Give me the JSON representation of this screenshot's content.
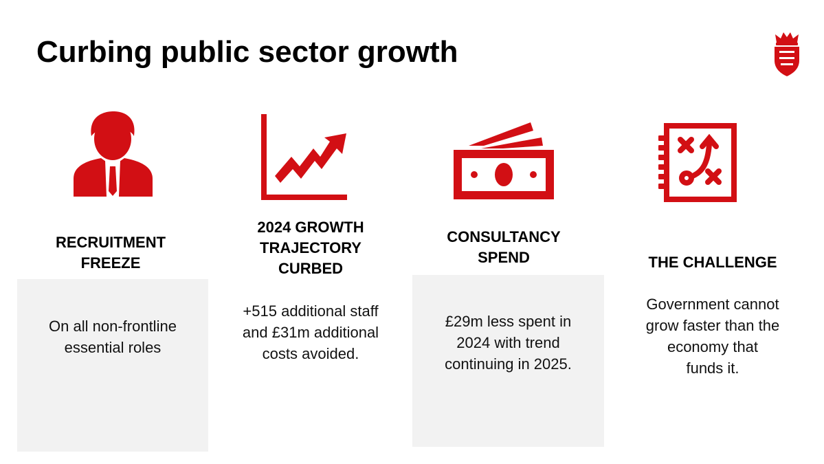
{
  "slide": {
    "title": "Curbing public sector growth",
    "accent_color": "#d20f14",
    "panel_color": "#f2f2f2",
    "columns": [
      {
        "icon": "businessman-icon",
        "heading_lines": [
          "RECRUITMENT",
          "FREEZE"
        ],
        "text_lines": [
          "On all non-frontline",
          "essential roles"
        ]
      },
      {
        "icon": "growth-chart-icon",
        "heading_lines": [
          "2024 GROWTH",
          "TRAJECTORY",
          "CURBED"
        ],
        "text_lines": [
          "+515 additional staff",
          "and £31m additional",
          "costs avoided."
        ]
      },
      {
        "icon": "banknotes-icon",
        "heading_lines": [
          "CONSULTANCY",
          "SPEND"
        ],
        "text_lines": [
          "£29m less spent in",
          "2024 with trend",
          "continuing in 2025."
        ]
      },
      {
        "icon": "strategy-notebook-icon",
        "heading_lines": [
          "THE CHALLENGE"
        ],
        "text_lines": [
          "Government cannot",
          "grow faster than the",
          "economy that",
          "funds it."
        ]
      }
    ]
  }
}
